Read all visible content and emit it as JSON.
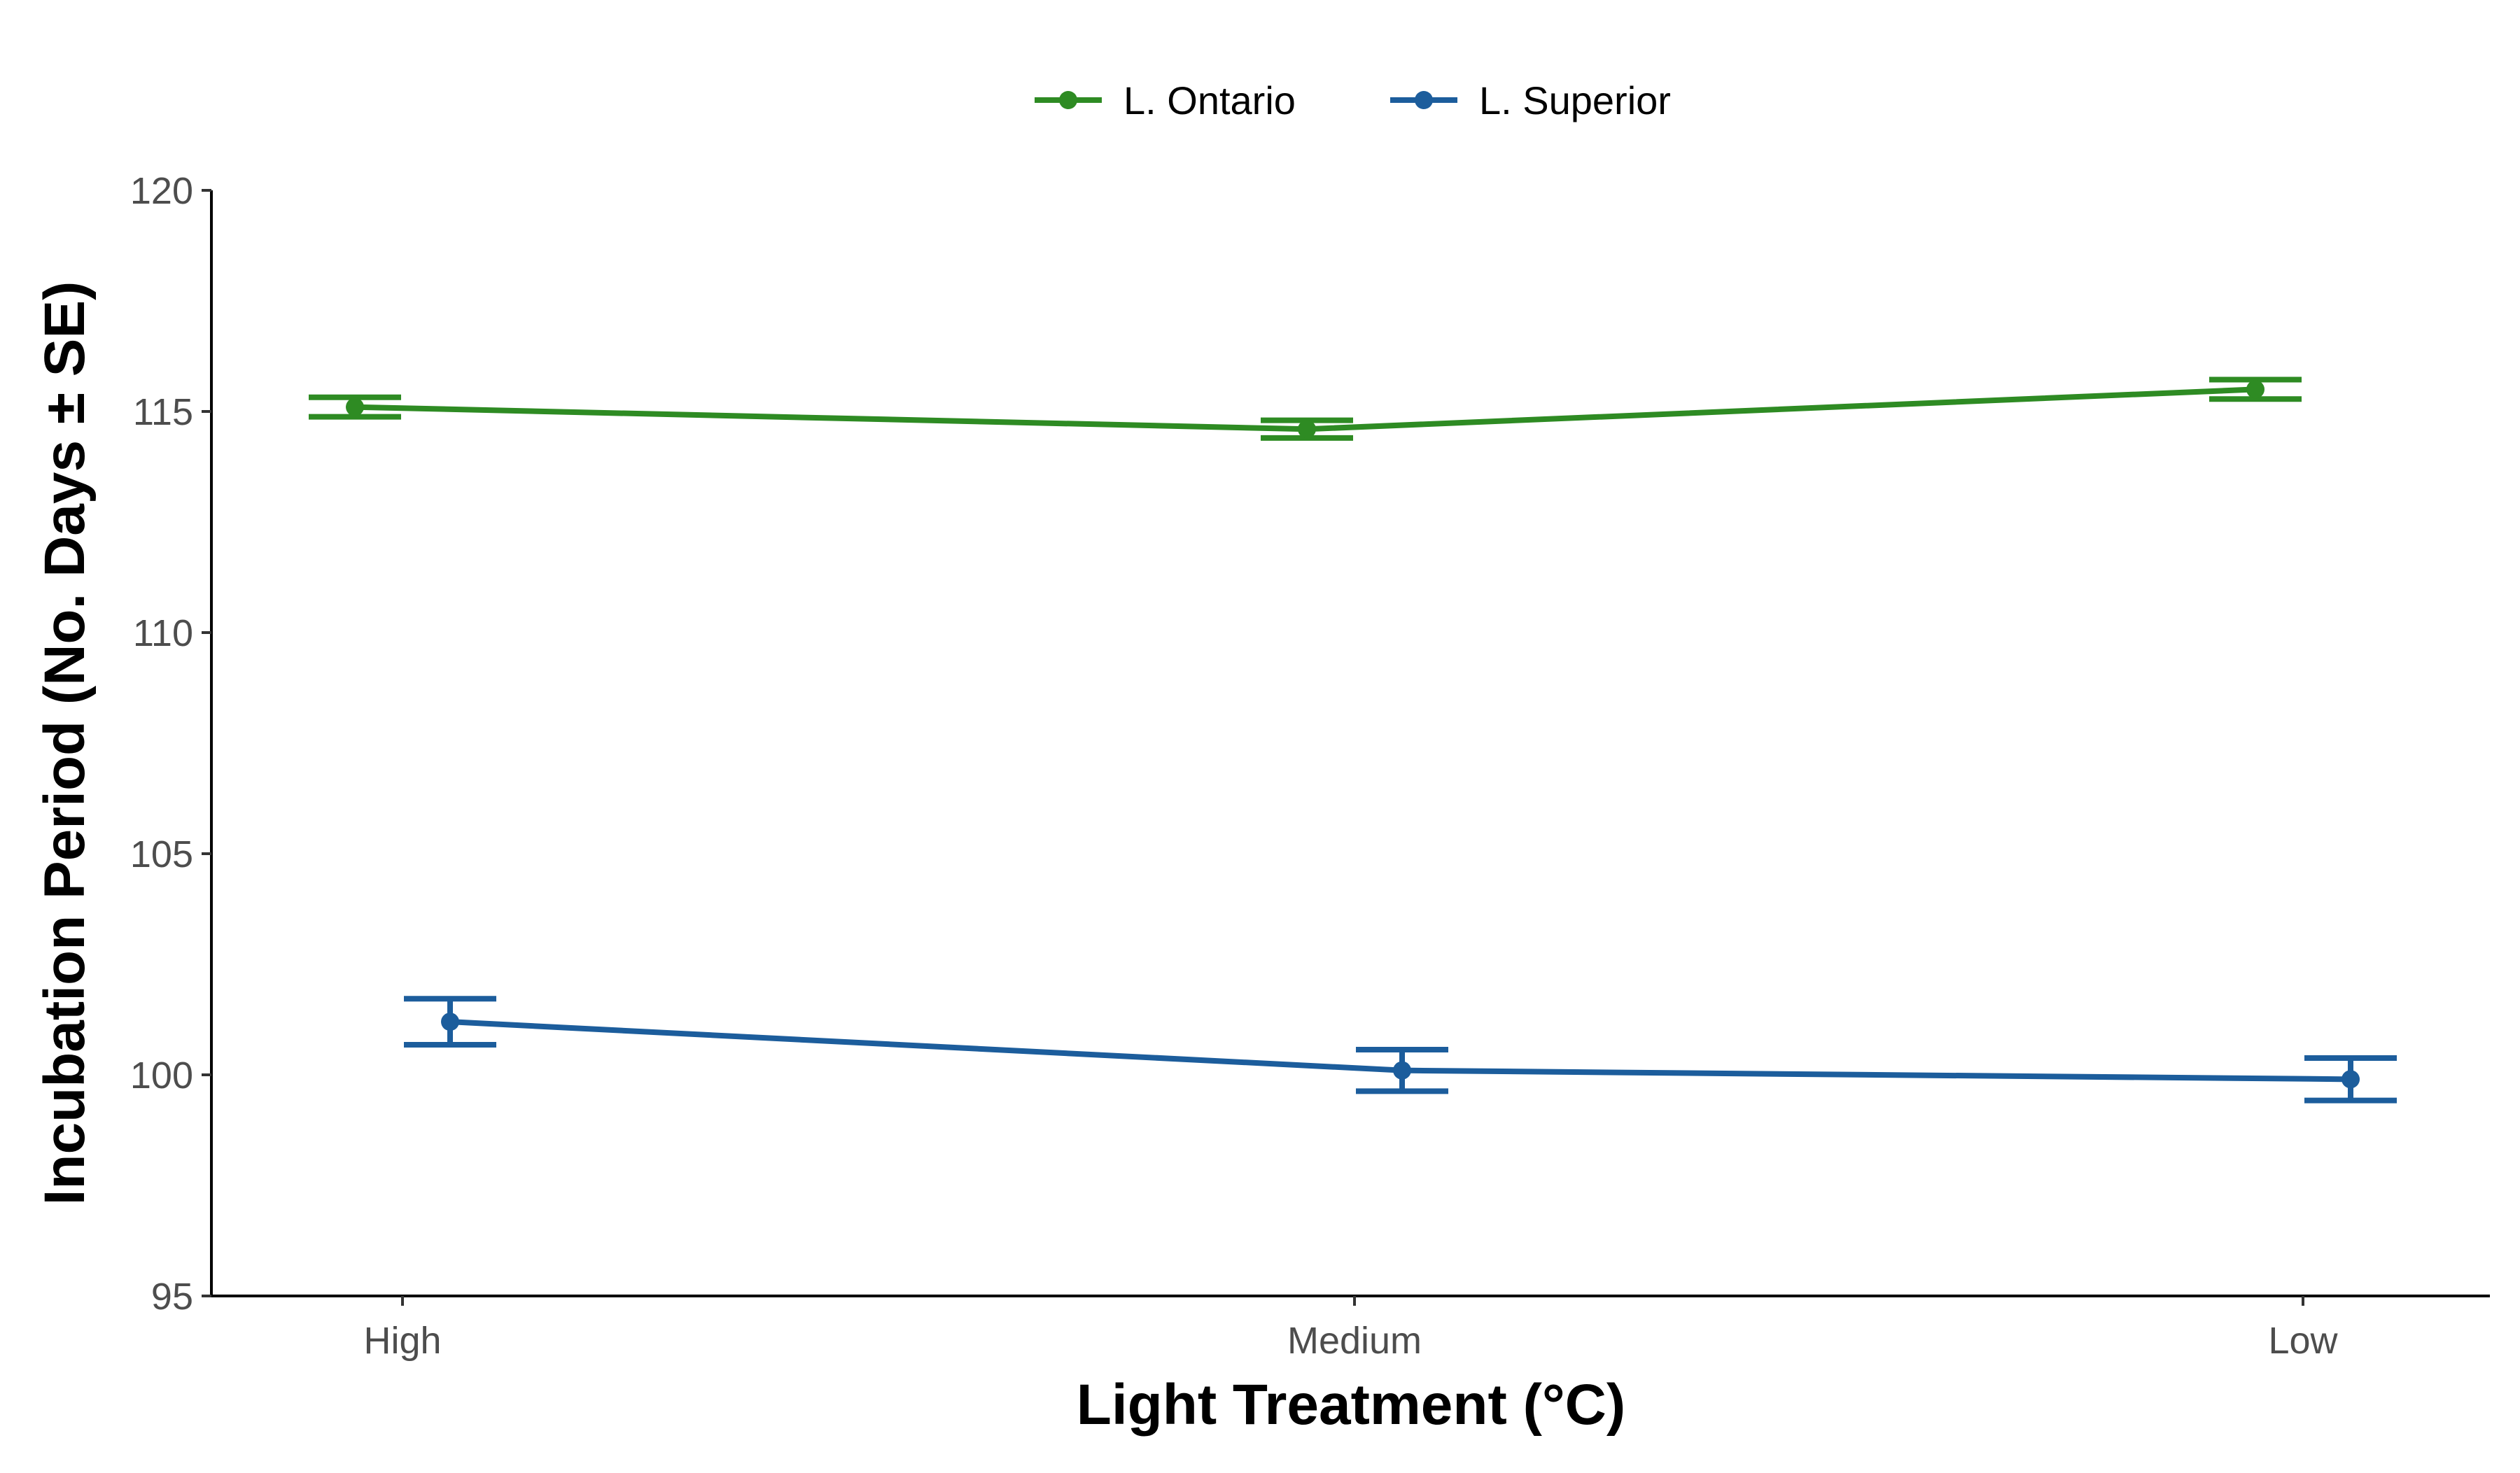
{
  "chart_data": {
    "type": "line",
    "title": "",
    "xlabel": "Light Treatment (°C)",
    "ylabel": "Incubation Period (No. Days ± SE)",
    "categories": [
      "High",
      "Medium",
      "Low"
    ],
    "ylim": [
      95,
      120
    ],
    "yticks": [
      "95",
      "100",
      "105",
      "110",
      "115",
      "120"
    ],
    "grid": false,
    "legend_position": "top-center",
    "error_bars": "± SE",
    "series": [
      {
        "name": "L. Ontario",
        "color": "#2e8b23",
        "values": [
          115.1,
          114.6,
          115.5
        ],
        "se": [
          0.22,
          0.2,
          0.22
        ]
      },
      {
        "name": "L. Superior",
        "color": "#1c5d9c",
        "values": [
          101.2,
          100.1,
          99.9
        ],
        "se": [
          0.52,
          0.47,
          0.48
        ]
      }
    ]
  }
}
